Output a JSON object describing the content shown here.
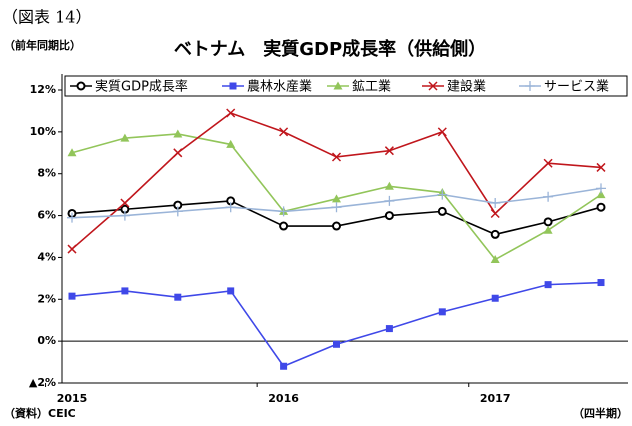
{
  "chart_data": {
    "type": "line",
    "figure_label": "（図表 14）",
    "y_axis_label": "（前年同期比）",
    "title": "ベトナム　実質GDP成長率（供給側）",
    "source": "（資料）CEIC",
    "x_axis_label": "（四半期）",
    "categories": [
      "2015",
      null,
      null,
      null,
      "2016",
      null,
      null,
      null,
      "2017",
      null,
      null
    ],
    "series": [
      {
        "name": "実質GDP成長率",
        "color": "#000000",
        "marker": "circle",
        "values": [
          6.1,
          6.3,
          6.5,
          6.7,
          5.5,
          5.5,
          6.0,
          6.2,
          5.1,
          5.7,
          6.4
        ]
      },
      {
        "name": "農林水産業",
        "color": "#3f48e8",
        "marker": "square",
        "values": [
          2.15,
          2.4,
          2.1,
          2.4,
          -1.2,
          -0.15,
          0.6,
          1.4,
          2.05,
          2.7,
          2.8
        ]
      },
      {
        "name": "鉱工業",
        "color": "#92c55a",
        "marker": "triangle",
        "values": [
          9.0,
          9.7,
          9.9,
          9.4,
          6.2,
          6.8,
          7.4,
          7.1,
          3.9,
          5.3,
          7.0
        ]
      },
      {
        "name": "建設業",
        "color": "#c0161c",
        "marker": "cross",
        "values": [
          4.4,
          6.6,
          9.0,
          10.9,
          10.0,
          8.8,
          9.1,
          10.0,
          6.1,
          8.5,
          8.3
        ]
      },
      {
        "name": "サービス業",
        "color": "#9ab4d8",
        "marker": "plus",
        "values": [
          5.9,
          6.0,
          6.2,
          6.4,
          6.2,
          6.4,
          6.7,
          7.0,
          6.6,
          6.9,
          7.3
        ]
      }
    ],
    "ylim": [
      -2,
      12
    ],
    "yticks": [
      {
        "value": -2,
        "label": "▲2%"
      },
      {
        "value": 0,
        "label": "0%"
      },
      {
        "value": 2,
        "label": "2%"
      },
      {
        "value": 4,
        "label": "4%"
      },
      {
        "value": 6,
        "label": "6%"
      },
      {
        "value": 8,
        "label": "8%"
      },
      {
        "value": 10,
        "label": "10%"
      },
      {
        "value": 12,
        "label": "12%"
      }
    ],
    "grid": false,
    "legend": "top"
  }
}
